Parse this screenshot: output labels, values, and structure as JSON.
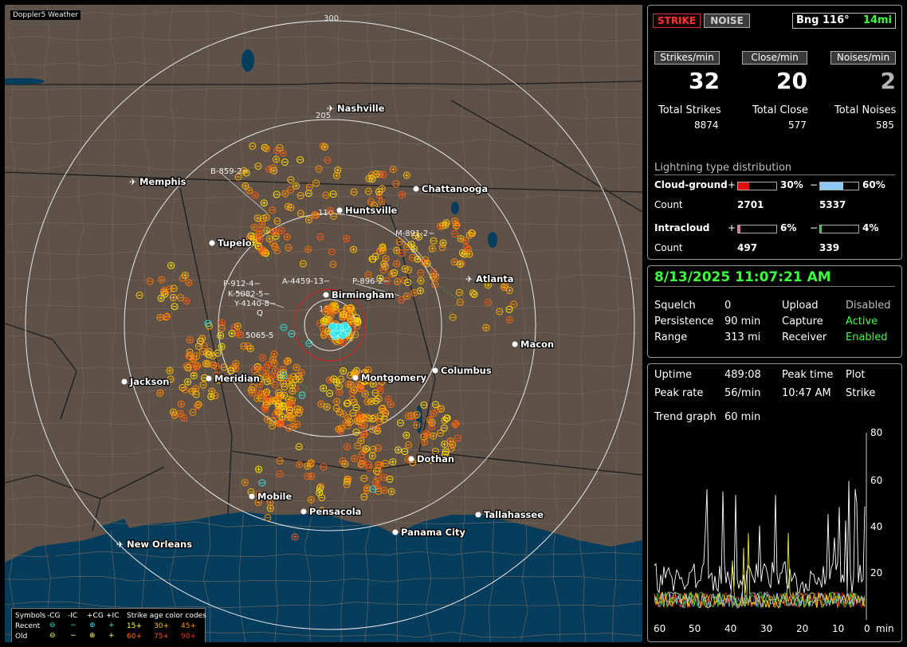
{
  "app_title": "Doppler5 Weather",
  "mode": {
    "strike": "STRIKE",
    "noise": "NOISE"
  },
  "bearing": {
    "label": "Bng 116°",
    "distance": "14mi"
  },
  "rates": {
    "strikes_label": "Strikes/min",
    "strikes": "32",
    "close_label": "Close/min",
    "close": "20",
    "noises_label": "Noises/min",
    "noises": "2"
  },
  "totals": {
    "strikes_label": "Total Strikes",
    "strikes": "8874",
    "close_label": "Total Close",
    "close": "577",
    "noises_label": "Total Noises",
    "noises": "585"
  },
  "distribution": {
    "title": "Lightning type distribution",
    "cg_label": "Cloud-ground",
    "cg_pos_pct": "30%",
    "cg_neg_pct": "60%",
    "cg_pos_frac": 0.3,
    "cg_neg_frac": 0.6,
    "count_label": "Count",
    "cg_pos_count": "2701",
    "cg_neg_count": "5337",
    "ic_label": "Intracloud",
    "ic_pos_pct": "6%",
    "ic_neg_pct": "4%",
    "ic_pos_frac": 0.06,
    "ic_neg_frac": 0.04,
    "ic_pos_count": "497",
    "ic_neg_count": "339",
    "plus": "+",
    "minus": "−"
  },
  "status": {
    "datetime": "8/13/2025 11:07:21 AM",
    "squelch_label": "Squelch",
    "squelch": "0",
    "persistence_label": "Persistence",
    "persistence": "90 min",
    "range_label": "Range",
    "range": "313 mi",
    "upload_label": "Upload",
    "upload": "Disabled",
    "capture_label": "Capture",
    "capture": "Active",
    "receiver_label": "Receiver",
    "receiver": "Enabled"
  },
  "trend": {
    "uptime_label": "Uptime",
    "uptime": "489:08",
    "peak_time_label": "Peak time",
    "peak_time": "10:47 AM",
    "plot_label": "Plot",
    "plot": "Strike",
    "peak_rate_label": "Peak rate",
    "peak_rate": "56/min",
    "graph_label": "Trend graph",
    "graph": "60 min",
    "y_ticks": [
      "80",
      "60",
      "40",
      "20"
    ],
    "x_ticks": [
      "60",
      "50",
      "40",
      "30",
      "20",
      "10",
      "0"
    ],
    "x_unit": "min"
  },
  "map": {
    "range_labels": [
      "300",
      "205",
      "110",
      "15"
    ],
    "cities": [
      "Nashville",
      "Memphis",
      "Chattanooga",
      "Huntsville",
      "Tupelo",
      "Atlanta",
      "Birmingham",
      "Macon",
      "Jackson",
      "Meridian",
      "Montgomery",
      "Columbus",
      "Dothan",
      "Mobile",
      "Pensacola",
      "Tallahassee",
      "Panama City",
      "New Orleans"
    ],
    "airport_cities": [
      "Nashville",
      "Memphis",
      "Atlanta",
      "New Orleans"
    ],
    "tracks": [
      "B-859-2",
      "M-891-2",
      "P-896-2",
      "A-4459-13",
      "P-912-4",
      "K-5082-5",
      "Y-4140-8",
      "5065-5",
      "Q"
    ]
  },
  "legend": {
    "symbols_label": "Symbols",
    "neg_cg": "-CG",
    "neg_ic": "-IC",
    "pos_cg": "+CG",
    "pos_ic": "+IC",
    "age_label": "Strike age color codes",
    "recent_label": "Recent",
    "old_label": "Old",
    "recent_ages": [
      "15+",
      "30+",
      "45+"
    ],
    "old_ages": [
      "60+",
      "75+",
      "90+"
    ],
    "age_colors": [
      "#ffff40",
      "#ffc000",
      "#ff9000",
      "#ff7000",
      "#ff5020",
      "#ff2020"
    ]
  },
  "colors": {
    "recent": "#37e6e6",
    "strike_yellow": "#ffd000",
    "strike_orange": "#ff8c00",
    "land": "#5e5148",
    "water": "#073d5c"
  }
}
